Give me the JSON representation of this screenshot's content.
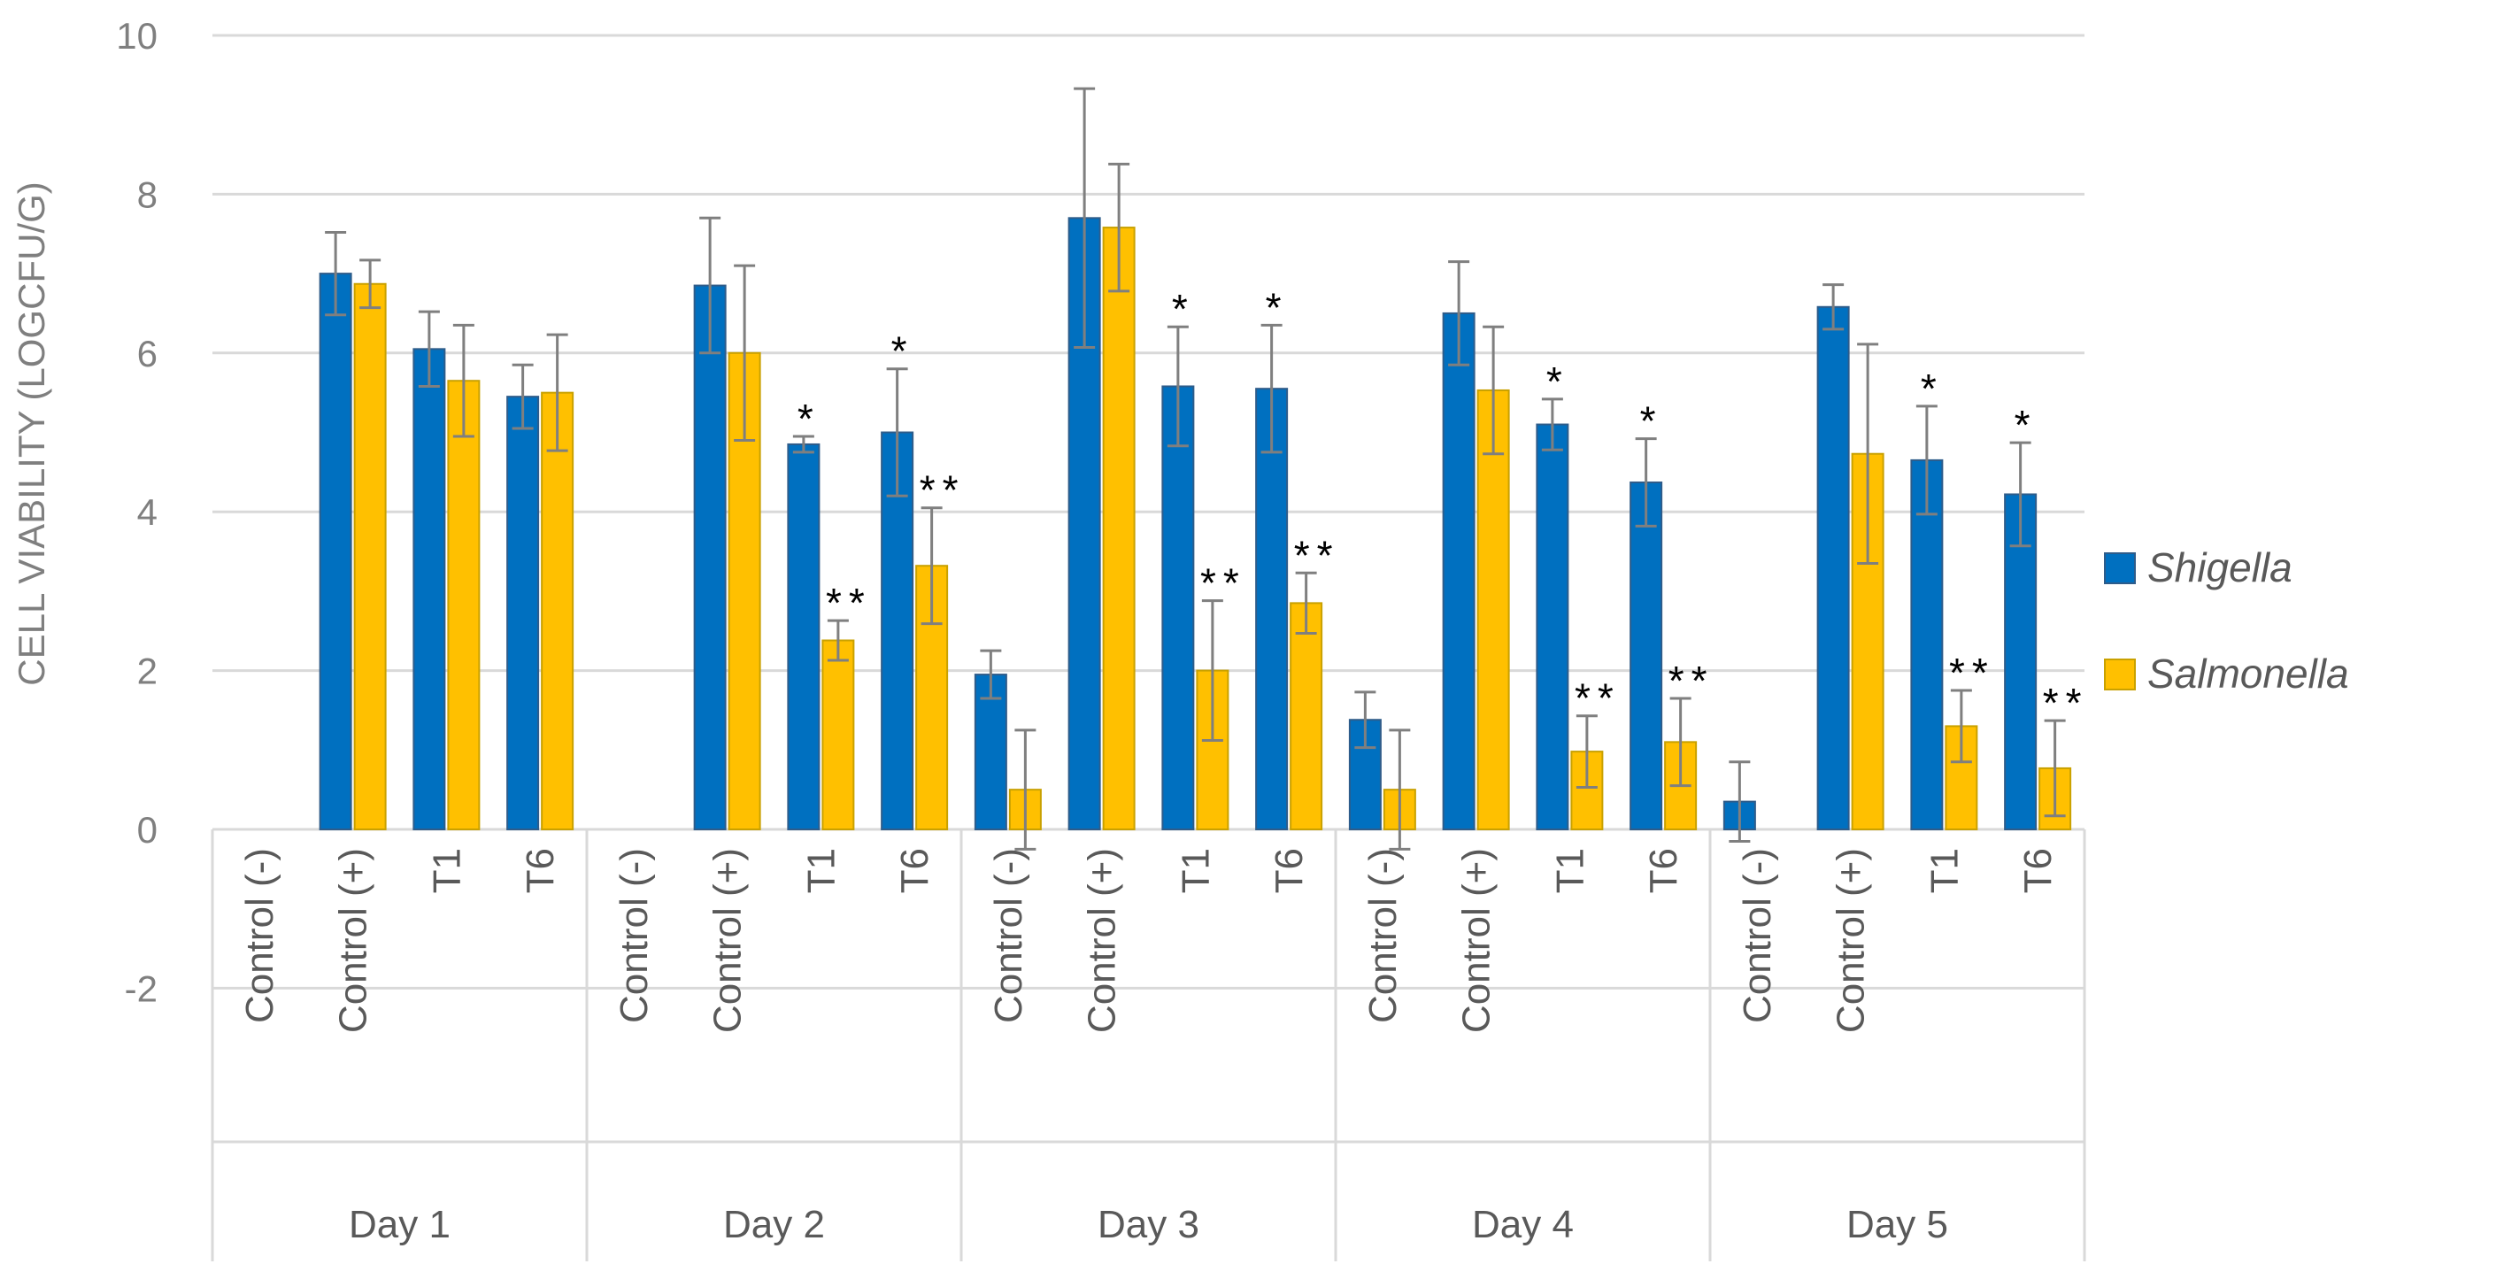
{
  "chart_data": {
    "type": "bar",
    "title": "",
    "xlabel": "",
    "ylabel": "CELL VIABILITY (LOGCFU/G)",
    "ylim": [
      -2,
      10
    ],
    "yticks": [
      10,
      8,
      6,
      4,
      2,
      0,
      -2
    ],
    "grid": true,
    "legend_position": "right",
    "groups": [
      {
        "label": "Day 1",
        "categories": [
          "Control (-)",
          "Control (+)",
          "T1",
          "T6"
        ]
      },
      {
        "label": "Day 2",
        "categories": [
          "Control (-)",
          "Control (+)",
          "T1",
          "T6"
        ]
      },
      {
        "label": "Day 3",
        "categories": [
          "Control (-)",
          "Control (+)",
          "T1",
          "T6"
        ]
      },
      {
        "label": "Day 4",
        "categories": [
          "Control (-)",
          "Control (+)",
          "T1",
          "T6"
        ]
      },
      {
        "label": "Day 5",
        "categories": [
          "Control (-)",
          "Control (+)",
          "T1",
          "T6"
        ]
      }
    ],
    "series": [
      {
        "name": "Shigella",
        "color": "#0070C0",
        "values": [
          null,
          7.0,
          6.05,
          5.45,
          null,
          6.85,
          4.85,
          5.0,
          1.95,
          7.7,
          5.58,
          5.55,
          1.38,
          6.5,
          5.1,
          4.37,
          0.35,
          6.58,
          4.65,
          4.22
        ],
        "errors": [
          null,
          0.52,
          0.47,
          0.4,
          null,
          0.85,
          0.1,
          0.8,
          0.3,
          1.63,
          0.75,
          0.8,
          0.35,
          0.65,
          0.32,
          0.55,
          0.5,
          0.28,
          0.68,
          0.65
        ],
        "annotations": [
          "",
          "",
          "",
          "",
          "",
          "",
          "*",
          "*",
          "",
          "",
          "*",
          "*",
          "",
          "",
          "*",
          "*",
          "",
          "",
          "*",
          "*"
        ]
      },
      {
        "name": "Salmonella",
        "color": "#FFC000",
        "values": [
          null,
          6.87,
          5.65,
          5.5,
          null,
          6.0,
          2.38,
          3.32,
          0.5,
          7.58,
          2.0,
          2.85,
          0.5,
          5.53,
          0.98,
          1.1,
          null,
          4.73,
          1.3,
          0.77
        ],
        "errors": [
          null,
          0.3,
          0.7,
          0.73,
          null,
          1.1,
          0.25,
          0.73,
          0.75,
          0.8,
          0.88,
          0.38,
          0.75,
          0.8,
          0.45,
          0.55,
          null,
          1.38,
          0.45,
          0.6
        ],
        "annotations": [
          "",
          "",
          "",
          "",
          "",
          "",
          "**",
          "**",
          "",
          "",
          "**",
          "**",
          "",
          "",
          "**",
          "**",
          "",
          "",
          "**",
          "**"
        ]
      }
    ]
  }
}
